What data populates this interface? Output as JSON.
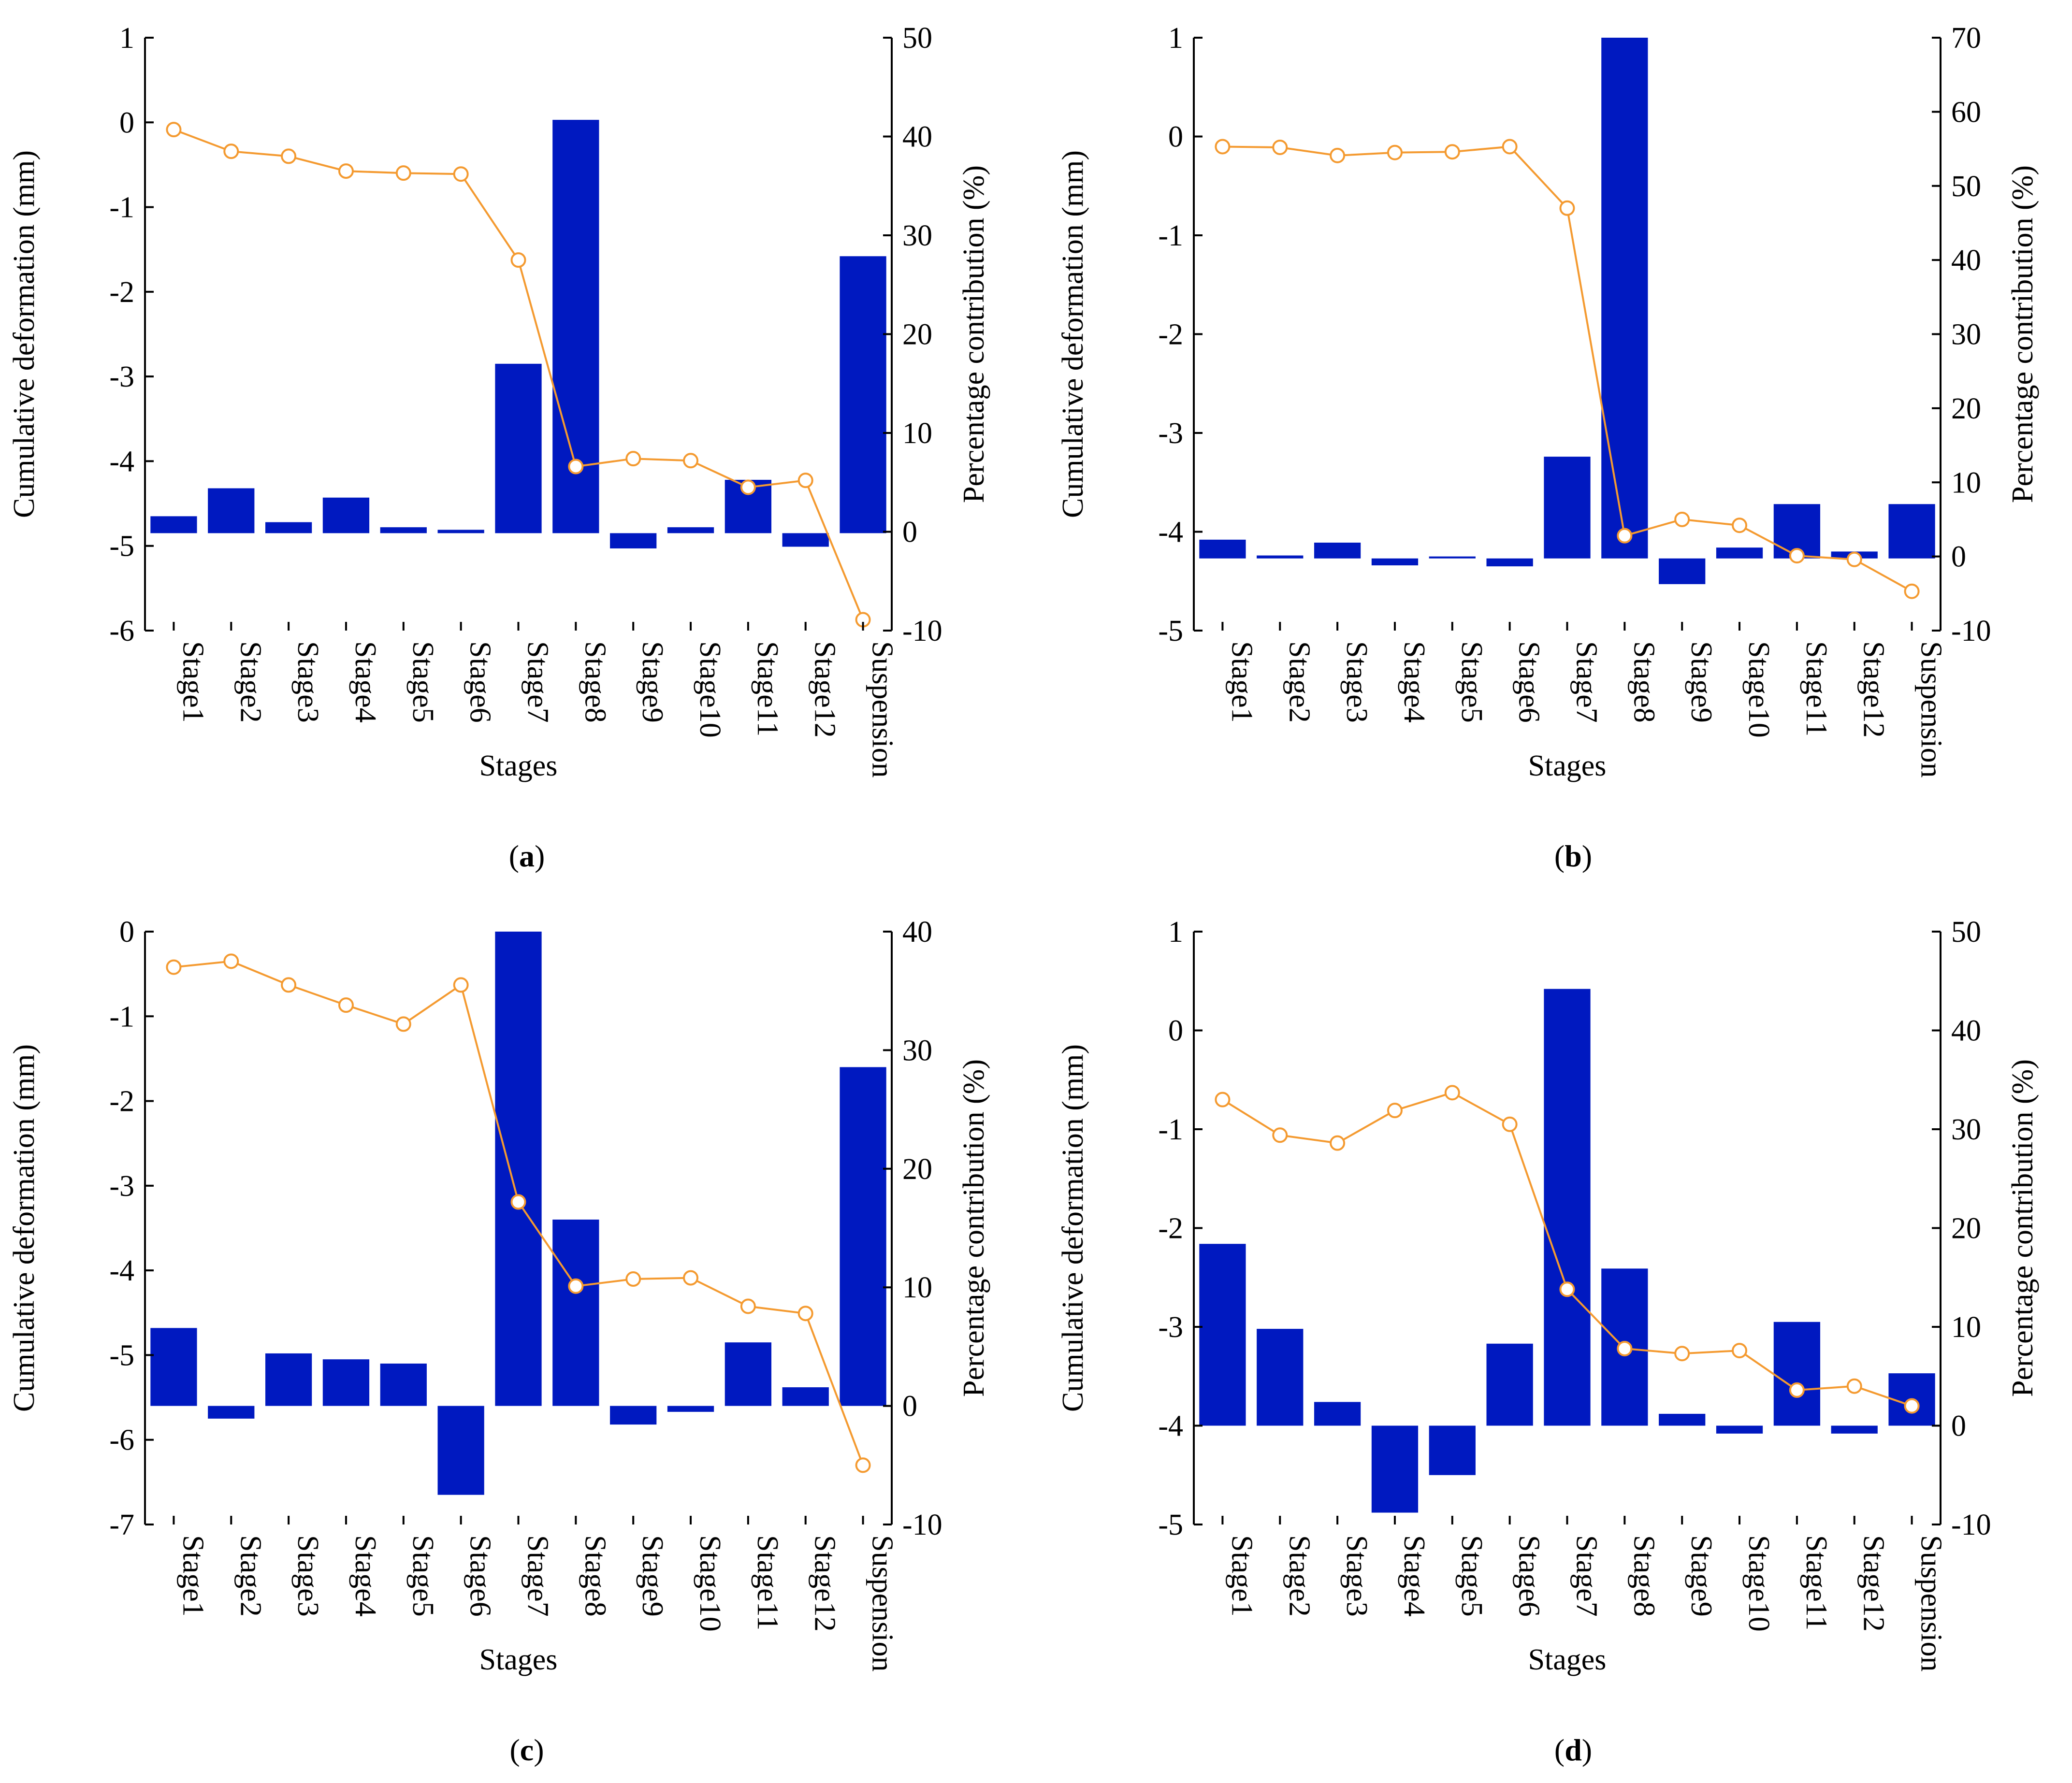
{
  "colors": {
    "bar": "#0019c0",
    "line": "#f49a30",
    "marker_fill": "#ffffff",
    "axis": "#000000"
  },
  "panels": [
    {
      "caption": "a"
    },
    {
      "caption": "b"
    },
    {
      "caption": "c"
    },
    {
      "caption": "d"
    }
  ],
  "chart_data": [
    {
      "type": "bar",
      "panel": "a",
      "title": "",
      "xlabel": "Stages",
      "ylabel": "Cumulative deformation (mm)",
      "y2label": "Percentage contribution (%)",
      "categories": [
        "Stage1",
        "Stage2",
        "Stage3",
        "Stage4",
        "Stage5",
        "Stage6",
        "Stage7",
        "Stage8",
        "Stage9",
        "Stage10",
        "Stage11",
        "Stage12",
        "Suspension"
      ],
      "ylim": [
        -6,
        1
      ],
      "yticks": [
        -6,
        -5,
        -4,
        -3,
        -2,
        -1,
        0,
        1
      ],
      "y2lim": [
        -10,
        50
      ],
      "y2ticks": [
        -10,
        0,
        10,
        20,
        30,
        40,
        50
      ],
      "bar_base": -4.85,
      "series": [
        {
          "name": "Cumulative deformation",
          "axis": "left",
          "kind": "bar",
          "values": [
            -4.65,
            -4.32,
            -4.72,
            -4.43,
            -4.78,
            -4.81,
            -2.85,
            0.03,
            -5.03,
            -4.78,
            -4.22,
            -5.01,
            -1.58
          ]
        },
        {
          "name": "Percentage contribution",
          "axis": "right",
          "kind": "line",
          "values": [
            40.7,
            38.5,
            38.0,
            36.5,
            36.3,
            36.2,
            27.5,
            6.6,
            7.4,
            7.2,
            4.5,
            5.2,
            -8.9
          ]
        }
      ]
    },
    {
      "type": "bar",
      "panel": "b",
      "title": "",
      "xlabel": "Stages",
      "ylabel": "Cumulative deformation (mm)",
      "y2label": "Percentage contribution (%)",
      "categories": [
        "Stage1",
        "Stage2",
        "Stage3",
        "Stage4",
        "Stage5",
        "Stage6",
        "Stage7",
        "Stage8",
        "Stage9",
        "Stage10",
        "Stage11",
        "Stage12",
        "Suspension"
      ],
      "ylim": [
        -5,
        1
      ],
      "yticks": [
        -5,
        -4,
        -3,
        -2,
        -1,
        0,
        1
      ],
      "y2lim": [
        -10,
        70
      ],
      "y2ticks": [
        -10,
        0,
        10,
        20,
        30,
        40,
        50,
        60,
        70
      ],
      "bar_base": -4.27,
      "series": [
        {
          "name": "Cumulative deformation",
          "axis": "left",
          "kind": "bar",
          "values": [
            -4.08,
            -4.24,
            -4.11,
            -4.34,
            -4.25,
            -4.35,
            -3.24,
            1.0,
            -4.53,
            -4.16,
            -3.72,
            -4.2,
            -3.72
          ]
        },
        {
          "name": "Percentage contribution",
          "axis": "right",
          "kind": "line",
          "values": [
            55.3,
            55.2,
            54.1,
            54.5,
            54.6,
            55.3,
            47.0,
            2.8,
            5.0,
            4.2,
            0.1,
            -0.4,
            -4.7
          ]
        }
      ]
    },
    {
      "type": "bar",
      "panel": "c",
      "title": "",
      "xlabel": "Stages",
      "ylabel": "Cumulative deformation (mm)",
      "y2label": "Percentage contribution (%)",
      "categories": [
        "Stage1",
        "Stage2",
        "Stage3",
        "Stage4",
        "Stage5",
        "Stage6",
        "Stage7",
        "Stage8",
        "Stage9",
        "Stage10",
        "Stage11",
        "Stage12",
        "Suspension"
      ],
      "ylim": [
        -7,
        0
      ],
      "yticks": [
        -7,
        -6,
        -5,
        -4,
        -3,
        -2,
        -1,
        0
      ],
      "y2lim": [
        -10,
        40
      ],
      "y2ticks": [
        -10,
        0,
        10,
        20,
        30,
        40
      ],
      "bar_base": -5.6,
      "series": [
        {
          "name": "Cumulative deformation",
          "axis": "left",
          "kind": "bar",
          "values": [
            -4.68,
            -5.75,
            -4.98,
            -5.05,
            -5.1,
            -6.65,
            0.0,
            -3.4,
            -5.82,
            -5.67,
            -4.85,
            -5.38,
            -1.6
          ]
        },
        {
          "name": "Percentage contribution",
          "axis": "right",
          "kind": "line",
          "values": [
            37.0,
            37.5,
            35.5,
            33.8,
            32.2,
            35.5,
            17.2,
            10.1,
            10.7,
            10.8,
            8.4,
            7.8,
            -5.0
          ]
        }
      ]
    },
    {
      "type": "bar",
      "panel": "d",
      "title": "",
      "xlabel": "Stages",
      "ylabel": "Cumulative deformation (mm)",
      "y2label": "Percentage contribution (%)",
      "categories": [
        "Stage1",
        "Stage2",
        "Stage3",
        "Stage4",
        "Stage5",
        "Stage6",
        "Stage7",
        "Stage8",
        "Stage9",
        "Stage10",
        "Stage11",
        "Stage12",
        "Suspension"
      ],
      "ylim": [
        -5,
        1
      ],
      "yticks": [
        -5,
        -4,
        -3,
        -2,
        -1,
        0,
        1
      ],
      "y2lim": [
        -10,
        50
      ],
      "y2ticks": [
        -10,
        0,
        10,
        20,
        30,
        40,
        50
      ],
      "bar_base": -4.0,
      "series": [
        {
          "name": "Cumulative deformation",
          "axis": "left",
          "kind": "bar",
          "values": [
            -2.16,
            -3.02,
            -3.76,
            -4.88,
            -4.5,
            -3.17,
            0.42,
            -2.41,
            -3.88,
            -4.08,
            -2.95,
            -4.08,
            -3.47
          ]
        },
        {
          "name": "Percentage contribution",
          "axis": "right",
          "kind": "line",
          "values": [
            33.0,
            29.4,
            28.6,
            31.9,
            33.7,
            30.5,
            13.8,
            7.8,
            7.3,
            7.6,
            3.6,
            4.0,
            2.0
          ]
        }
      ]
    }
  ]
}
